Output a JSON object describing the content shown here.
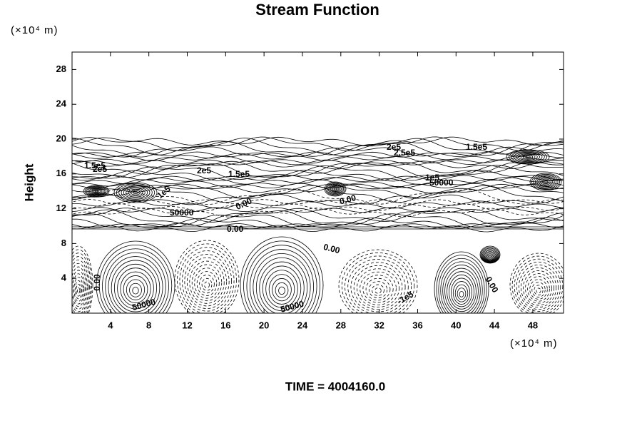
{
  "chart_data": {
    "type": "contour",
    "title": "Stream Function",
    "y_unit": "(×10⁴ m)",
    "ylabel": "Height",
    "x_unit": "(×10⁴ m)",
    "footer": "TIME = 4004160.0",
    "xlim": [
      0,
      51.2
    ],
    "ylim": [
      0,
      30
    ],
    "xticks": [
      4,
      8,
      12,
      16,
      20,
      24,
      28,
      32,
      36,
      40,
      44,
      48
    ],
    "yticks": [
      4,
      8,
      12,
      16,
      20,
      24,
      28
    ],
    "contour_labels": [
      "1.5e5",
      "2e5",
      "2e5",
      "1.5e5",
      "2e5",
      "2.5e5",
      "1.5e5",
      "1e5",
      "50000",
      "0.00",
      "0.00",
      "1e5",
      "50000",
      "0.00",
      "0.00",
      "0.00",
      "50000",
      "50000",
      "-1e5",
      "0.00"
    ]
  }
}
